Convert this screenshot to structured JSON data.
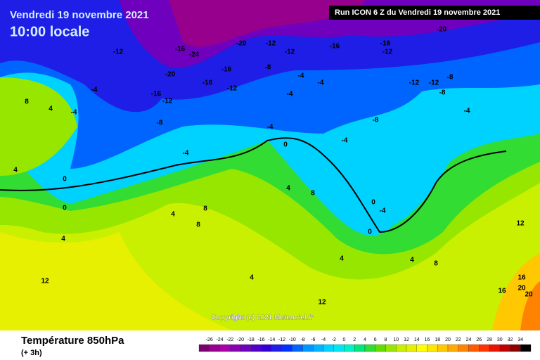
{
  "header": {
    "date": "Vendredi 19 novembre 2021",
    "time": "10:00 locale",
    "run": "Run ICON 6 Z du Vendredi 19 novembre 2021"
  },
  "footer": {
    "title": "Température 850hPa",
    "step": "(+ 3h)",
    "copyright": "Copyright (c) 2021 Meteociel.fr"
  },
  "legend": {
    "ticks": [
      -26,
      -24,
      -22,
      -20,
      -18,
      -16,
      -14,
      -12,
      -10,
      -8,
      -6,
      -4,
      -2,
      0,
      2,
      4,
      6,
      8,
      10,
      12,
      14,
      16,
      18,
      20,
      22,
      24,
      26,
      28,
      30,
      32,
      34
    ],
    "colors": [
      "#7a006e",
      "#96008c",
      "#aa00aa",
      "#8c00b4",
      "#6e00be",
      "#5000c8",
      "#3200d2",
      "#1e1ee6",
      "#0032ff",
      "#0064ff",
      "#0096ff",
      "#00b4ff",
      "#00d2ff",
      "#00e6f0",
      "#00f0c8",
      "#00e678",
      "#32dc32",
      "#64dc00",
      "#96e600",
      "#c8f000",
      "#e6f000",
      "#ffff00",
      "#ffe600",
      "#ffc800",
      "#ffaa00",
      "#ff8200",
      "#ff5a00",
      "#ff3200",
      "#e61400",
      "#be0000",
      "#8c0000",
      "#000000"
    ]
  },
  "map_labels": [
    -12,
    -16,
    -20,
    -24,
    -12,
    -12,
    -16,
    -16,
    -12,
    -20,
    -8,
    -16,
    -12,
    -16,
    -20,
    -16,
    -12,
    -4,
    -4,
    -8,
    -4,
    -4,
    -4,
    -4,
    -12,
    -12,
    -8,
    -8,
    -4,
    -8,
    -4,
    -4,
    0,
    0,
    0,
    8,
    4,
    4,
    4,
    8,
    8,
    4,
    8,
    4,
    4,
    12,
    12,
    8,
    12,
    16,
    20,
    16,
    20,
    4,
    0,
    -4,
    0,
    4
  ]
}
